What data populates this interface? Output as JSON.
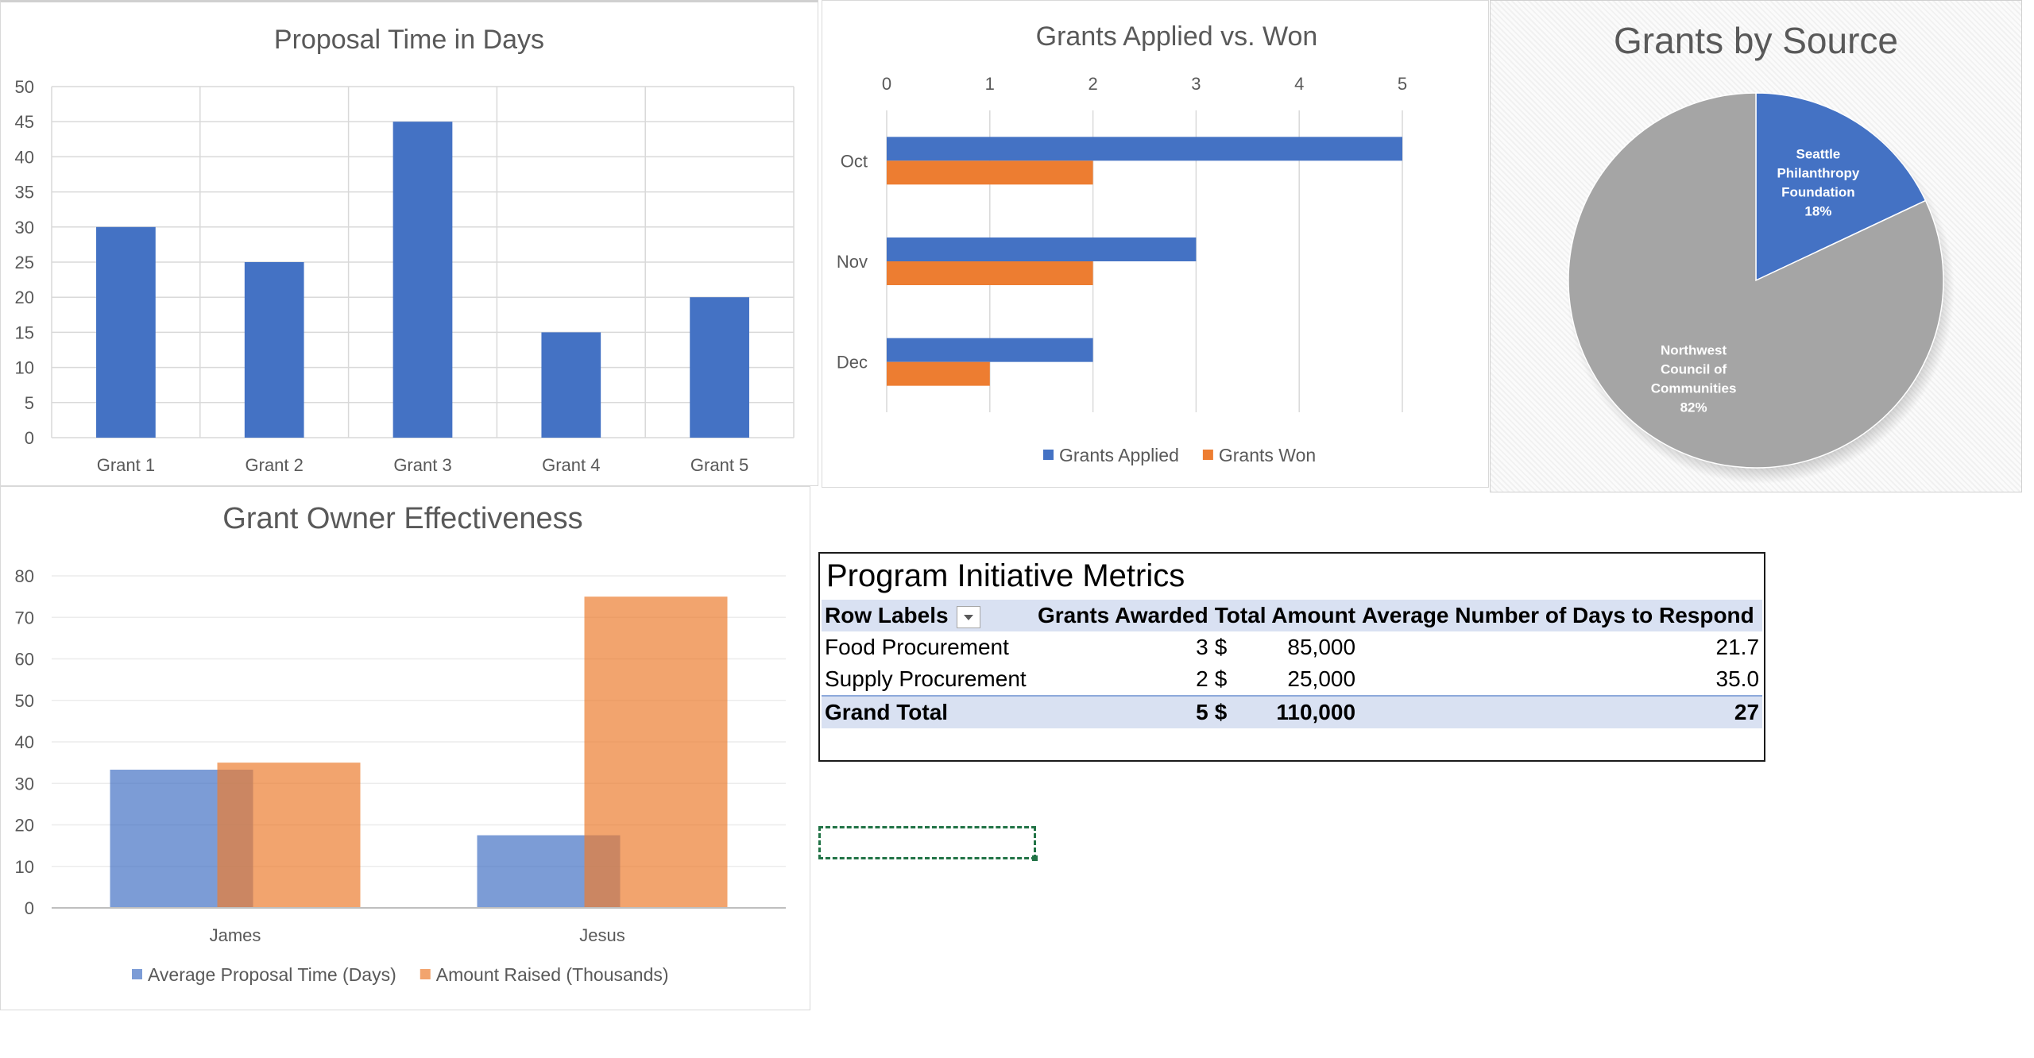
{
  "chart_data": [
    {
      "type": "bar",
      "title": "Proposal Time in Days",
      "categories": [
        "Grant 1",
        "Grant 2",
        "Grant 3",
        "Grant 4",
        "Grant 5"
      ],
      "values": [
        30,
        25,
        45,
        15,
        20
      ],
      "yticks": [
        0,
        5,
        10,
        15,
        20,
        25,
        30,
        35,
        40,
        45,
        50
      ],
      "ylim": [
        0,
        50
      ],
      "grid": true,
      "color": "#4472c4"
    },
    {
      "type": "bar",
      "orientation": "horizontal",
      "title": "Grants Applied vs. Won",
      "categories": [
        "Oct",
        "Nov",
        "Dec"
      ],
      "series": [
        {
          "name": "Grants Applied",
          "values": [
            5,
            3,
            2
          ],
          "color": "#4472c4"
        },
        {
          "name": "Grants Won",
          "values": [
            2,
            2,
            1
          ],
          "color": "#ed7d31"
        }
      ],
      "xticks": [
        0,
        1,
        2,
        3,
        4,
        5
      ],
      "xlim": [
        0,
        5
      ],
      "xaxis_position": "top",
      "legend": "bottom",
      "grid": true
    },
    {
      "type": "pie",
      "title": "Grants by Source",
      "slices": [
        {
          "label_lines": [
            "Seattle",
            "Philanthropy",
            "Foundation"
          ],
          "percent_label": "18%",
          "value": 18,
          "color": "#4472c4"
        },
        {
          "label_lines": [
            "Northwest",
            "Council of",
            "Communities"
          ],
          "percent_label": "82%",
          "value": 82,
          "color": "#a5a5a5"
        }
      ]
    },
    {
      "type": "bar",
      "title": "Grant Owner Effectiveness",
      "categories": [
        "James",
        "Jesus"
      ],
      "series": [
        {
          "name": "Average Proposal Time (Days)",
          "values": [
            33.3,
            17.5
          ],
          "color": "#4472c4"
        },
        {
          "name": "Amount Raised (Thousands)",
          "values": [
            35,
            75
          ],
          "color": "#ed7d31"
        }
      ],
      "yticks": [
        0,
        10,
        20,
        30,
        40,
        50,
        60,
        70,
        80
      ],
      "ylim": [
        0,
        80
      ],
      "overlap": true,
      "legend": "bottom",
      "grid": true
    }
  ],
  "pivot": {
    "title": "Program Initiative Metrics",
    "headers": [
      "Row Labels",
      "Grants Awarded",
      "Total Amount",
      "Average Number of Days to Respond"
    ],
    "rows": [
      {
        "label": "Food Procurement",
        "awarded": "3",
        "currency": "$",
        "amount": "85,000",
        "days": "21.7"
      },
      {
        "label": "Supply Procurement",
        "awarded": "2",
        "currency": "$",
        "amount": "25,000",
        "days": "35.0"
      }
    ],
    "total": {
      "label": "Grand Total",
      "awarded": "5",
      "currency": "$",
      "amount": "110,000",
      "days": "27"
    }
  }
}
